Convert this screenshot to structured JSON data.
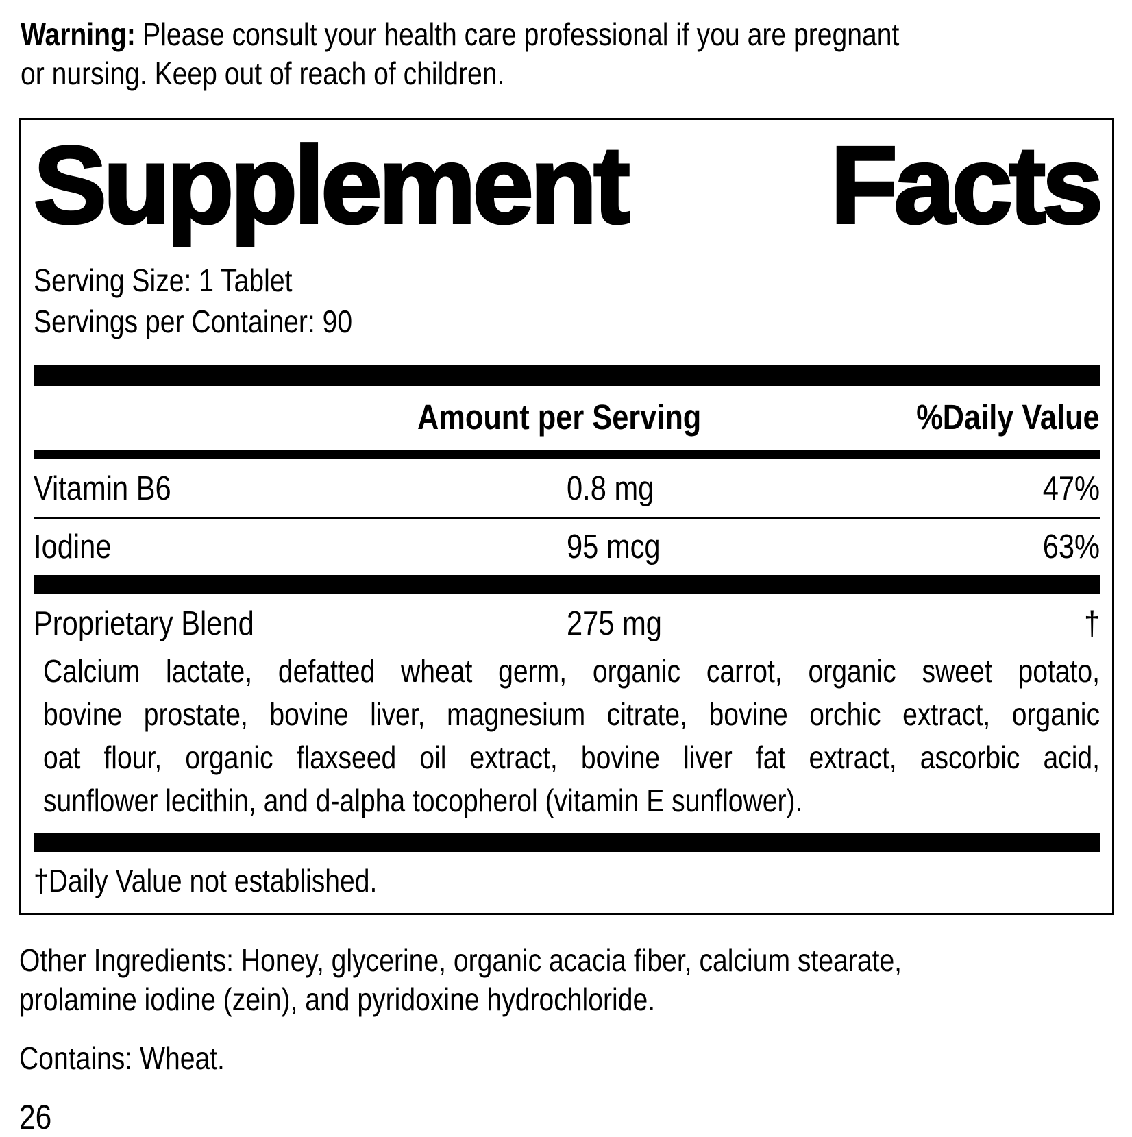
{
  "colors": {
    "ink": "#000000",
    "paper": "#ffffff"
  },
  "warning": {
    "label": "Warning:",
    "lines": [
      "Please consult your health care professional if you are pregnant",
      "or nursing. Keep out of reach of children."
    ]
  },
  "panel": {
    "title": {
      "left": "Supplement",
      "right": "Facts"
    },
    "serving_size": "Serving Size: 1 Tablet",
    "servings_per_container": "Servings per Container: 90",
    "header": {
      "amount": "Amount per Serving",
      "daily_value": "%Daily Value"
    },
    "nutrients": [
      {
        "name": "Vitamin B6",
        "amount": "0.8 mg",
        "daily_value": "47%"
      },
      {
        "name": "Iodine",
        "amount": "95 mcg",
        "daily_value": "63%"
      }
    ],
    "proprietary_blend": {
      "name": "Proprietary Blend",
      "amount": "275 mg",
      "daily_value": "†",
      "description_lines": [
        "Calcium lactate, defatted wheat germ, organic carrot, organic sweet potato,",
        "bovine prostate, bovine liver, magnesium citrate, bovine orchic extract, organic",
        "oat flour, organic flaxseed oil extract, bovine liver fat extract, ascorbic acid,",
        "sunflower lecithin, and d-alpha tocopherol (vitamin E sunflower)."
      ]
    },
    "footnote": "†Daily Value not established."
  },
  "other_ingredients": {
    "lines": [
      "Other Ingredients: Honey, glycerine, organic acacia fiber, calcium stearate,",
      "prolamine iodine (zein), and pyridoxine hydrochloride."
    ]
  },
  "contains": "Contains: Wheat.",
  "page_number": "26"
}
